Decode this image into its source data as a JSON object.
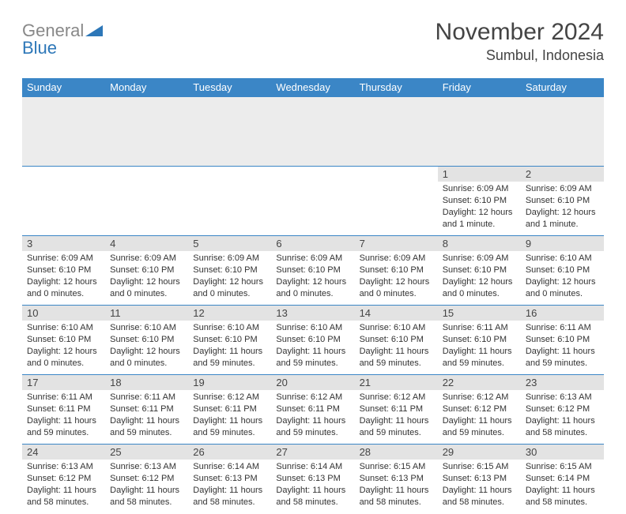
{
  "logo": {
    "text_gray": "General",
    "text_blue": "Blue"
  },
  "title": "November 2024",
  "location": "Sumbul, Indonesia",
  "day_headers": [
    "Sunday",
    "Monday",
    "Tuesday",
    "Wednesday",
    "Thursday",
    "Friday",
    "Saturday"
  ],
  "colors": {
    "header_bg": "#3b86c6",
    "header_text": "#ffffff",
    "daynum_bg": "#e3e3e3",
    "row_border": "#3b86c6",
    "logo_blue": "#2d77b8"
  },
  "weeks": [
    [
      {
        "day": "",
        "sunrise": "",
        "sunset": "",
        "daylight": "",
        "empty": true
      },
      {
        "day": "",
        "sunrise": "",
        "sunset": "",
        "daylight": "",
        "empty": true
      },
      {
        "day": "",
        "sunrise": "",
        "sunset": "",
        "daylight": "",
        "empty": true
      },
      {
        "day": "",
        "sunrise": "",
        "sunset": "",
        "daylight": "",
        "empty": true
      },
      {
        "day": "",
        "sunrise": "",
        "sunset": "",
        "daylight": "",
        "empty": true
      },
      {
        "day": "1",
        "sunrise": "Sunrise: 6:09 AM",
        "sunset": "Sunset: 6:10 PM",
        "daylight": "Daylight: 12 hours and 1 minute."
      },
      {
        "day": "2",
        "sunrise": "Sunrise: 6:09 AM",
        "sunset": "Sunset: 6:10 PM",
        "daylight": "Daylight: 12 hours and 1 minute."
      }
    ],
    [
      {
        "day": "3",
        "sunrise": "Sunrise: 6:09 AM",
        "sunset": "Sunset: 6:10 PM",
        "daylight": "Daylight: 12 hours and 0 minutes."
      },
      {
        "day": "4",
        "sunrise": "Sunrise: 6:09 AM",
        "sunset": "Sunset: 6:10 PM",
        "daylight": "Daylight: 12 hours and 0 minutes."
      },
      {
        "day": "5",
        "sunrise": "Sunrise: 6:09 AM",
        "sunset": "Sunset: 6:10 PM",
        "daylight": "Daylight: 12 hours and 0 minutes."
      },
      {
        "day": "6",
        "sunrise": "Sunrise: 6:09 AM",
        "sunset": "Sunset: 6:10 PM",
        "daylight": "Daylight: 12 hours and 0 minutes."
      },
      {
        "day": "7",
        "sunrise": "Sunrise: 6:09 AM",
        "sunset": "Sunset: 6:10 PM",
        "daylight": "Daylight: 12 hours and 0 minutes."
      },
      {
        "day": "8",
        "sunrise": "Sunrise: 6:09 AM",
        "sunset": "Sunset: 6:10 PM",
        "daylight": "Daylight: 12 hours and 0 minutes."
      },
      {
        "day": "9",
        "sunrise": "Sunrise: 6:10 AM",
        "sunset": "Sunset: 6:10 PM",
        "daylight": "Daylight: 12 hours and 0 minutes."
      }
    ],
    [
      {
        "day": "10",
        "sunrise": "Sunrise: 6:10 AM",
        "sunset": "Sunset: 6:10 PM",
        "daylight": "Daylight: 12 hours and 0 minutes."
      },
      {
        "day": "11",
        "sunrise": "Sunrise: 6:10 AM",
        "sunset": "Sunset: 6:10 PM",
        "daylight": "Daylight: 12 hours and 0 minutes."
      },
      {
        "day": "12",
        "sunrise": "Sunrise: 6:10 AM",
        "sunset": "Sunset: 6:10 PM",
        "daylight": "Daylight: 11 hours and 59 minutes."
      },
      {
        "day": "13",
        "sunrise": "Sunrise: 6:10 AM",
        "sunset": "Sunset: 6:10 PM",
        "daylight": "Daylight: 11 hours and 59 minutes."
      },
      {
        "day": "14",
        "sunrise": "Sunrise: 6:10 AM",
        "sunset": "Sunset: 6:10 PM",
        "daylight": "Daylight: 11 hours and 59 minutes."
      },
      {
        "day": "15",
        "sunrise": "Sunrise: 6:11 AM",
        "sunset": "Sunset: 6:10 PM",
        "daylight": "Daylight: 11 hours and 59 minutes."
      },
      {
        "day": "16",
        "sunrise": "Sunrise: 6:11 AM",
        "sunset": "Sunset: 6:10 PM",
        "daylight": "Daylight: 11 hours and 59 minutes."
      }
    ],
    [
      {
        "day": "17",
        "sunrise": "Sunrise: 6:11 AM",
        "sunset": "Sunset: 6:11 PM",
        "daylight": "Daylight: 11 hours and 59 minutes."
      },
      {
        "day": "18",
        "sunrise": "Sunrise: 6:11 AM",
        "sunset": "Sunset: 6:11 PM",
        "daylight": "Daylight: 11 hours and 59 minutes."
      },
      {
        "day": "19",
        "sunrise": "Sunrise: 6:12 AM",
        "sunset": "Sunset: 6:11 PM",
        "daylight": "Daylight: 11 hours and 59 minutes."
      },
      {
        "day": "20",
        "sunrise": "Sunrise: 6:12 AM",
        "sunset": "Sunset: 6:11 PM",
        "daylight": "Daylight: 11 hours and 59 minutes."
      },
      {
        "day": "21",
        "sunrise": "Sunrise: 6:12 AM",
        "sunset": "Sunset: 6:11 PM",
        "daylight": "Daylight: 11 hours and 59 minutes."
      },
      {
        "day": "22",
        "sunrise": "Sunrise: 6:12 AM",
        "sunset": "Sunset: 6:12 PM",
        "daylight": "Daylight: 11 hours and 59 minutes."
      },
      {
        "day": "23",
        "sunrise": "Sunrise: 6:13 AM",
        "sunset": "Sunset: 6:12 PM",
        "daylight": "Daylight: 11 hours and 58 minutes."
      }
    ],
    [
      {
        "day": "24",
        "sunrise": "Sunrise: 6:13 AM",
        "sunset": "Sunset: 6:12 PM",
        "daylight": "Daylight: 11 hours and 58 minutes."
      },
      {
        "day": "25",
        "sunrise": "Sunrise: 6:13 AM",
        "sunset": "Sunset: 6:12 PM",
        "daylight": "Daylight: 11 hours and 58 minutes."
      },
      {
        "day": "26",
        "sunrise": "Sunrise: 6:14 AM",
        "sunset": "Sunset: 6:13 PM",
        "daylight": "Daylight: 11 hours and 58 minutes."
      },
      {
        "day": "27",
        "sunrise": "Sunrise: 6:14 AM",
        "sunset": "Sunset: 6:13 PM",
        "daylight": "Daylight: 11 hours and 58 minutes."
      },
      {
        "day": "28",
        "sunrise": "Sunrise: 6:15 AM",
        "sunset": "Sunset: 6:13 PM",
        "daylight": "Daylight: 11 hours and 58 minutes."
      },
      {
        "day": "29",
        "sunrise": "Sunrise: 6:15 AM",
        "sunset": "Sunset: 6:13 PM",
        "daylight": "Daylight: 11 hours and 58 minutes."
      },
      {
        "day": "30",
        "sunrise": "Sunrise: 6:15 AM",
        "sunset": "Sunset: 6:14 PM",
        "daylight": "Daylight: 11 hours and 58 minutes."
      }
    ]
  ]
}
